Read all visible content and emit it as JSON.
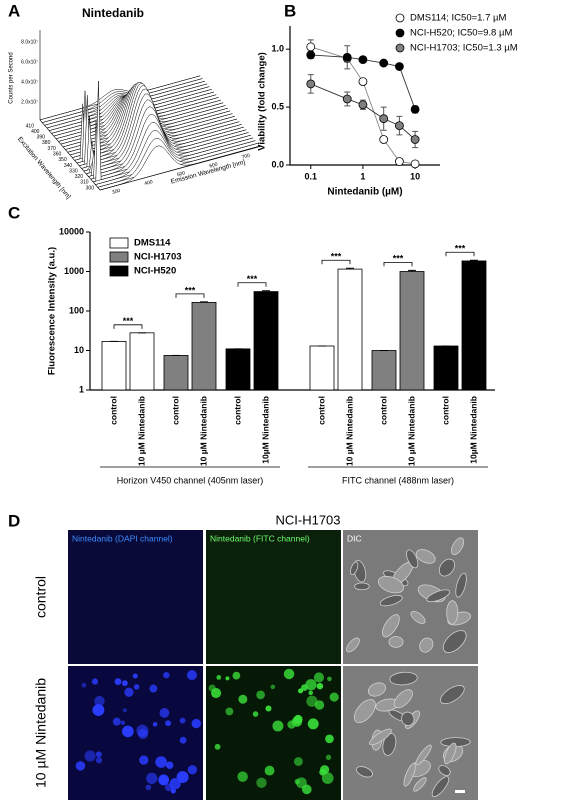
{
  "panel_labels": [
    "A",
    "B",
    "C",
    "D"
  ],
  "panel_a": {
    "title": "Nintedanib",
    "z_label": "Counts per Second",
    "z_ticks": [
      "8.0x10⁷",
      "6.0x10⁷",
      "4.0x10⁷",
      "2.0x10⁷"
    ],
    "y_label": "Excitation Wavelength [nm]",
    "y_ticks": [
      "410",
      "400",
      "390",
      "380",
      "370",
      "360",
      "350",
      "340",
      "330",
      "320",
      "310",
      "300"
    ],
    "x_label": "Emission Wavelength [nm]",
    "x_ticks": [
      "300",
      "400",
      "500",
      "600",
      "700"
    ]
  },
  "chart_data": [
    {
      "type": "line",
      "x_label": "Nintedanib (µM)",
      "y_label": "Viability (fold change)",
      "log_x": true,
      "x": [
        0.1,
        0.5,
        1,
        2.5,
        5,
        10
      ],
      "xlim": [
        0.04,
        30
      ],
      "xticks": [
        0.1,
        1,
        10
      ],
      "ylim": [
        0,
        1.2
      ],
      "yticks": [
        {
          "value": 0,
          "label": "0.0"
        },
        {
          "value": 0.5,
          "label": "0.5"
        },
        {
          "value": 1,
          "label": "1.0"
        }
      ],
      "series": [
        {
          "name": "DMS114; IC50=1.7 µM",
          "color": "#ffffff",
          "values": [
            1.02,
            0.92,
            0.72,
            0.22,
            0.03,
            0.01
          ],
          "errors": [
            0.06,
            0.03,
            0.02,
            0.02,
            0.01,
            0.01
          ]
        },
        {
          "name": "NCI-H520; IC50=9.8 µM",
          "color": "#000000",
          "values": [
            0.95,
            0.93,
            0.91,
            0.88,
            0.85,
            0.48
          ],
          "errors": [
            0.03,
            0.1,
            0.02,
            0.02,
            0.02,
            0.03
          ]
        },
        {
          "name": "NCI-H1703; IC50=1.3 µM",
          "color": "#808080",
          "values": [
            0.7,
            0.57,
            0.52,
            0.4,
            0.34,
            0.22
          ],
          "errors": [
            0.08,
            0.06,
            0.04,
            0.1,
            0.08,
            0.07
          ]
        }
      ]
    },
    {
      "type": "bar",
      "y_label": "Fluorescence Intensity (a.u.)",
      "log_y": true,
      "categories": [
        "control",
        "10 µM Nintedanib",
        "control",
        "10 µM Nintedanib",
        "control",
        "10µM Nintedanib",
        "control",
        "10 µM Nintedanib",
        "control",
        "10 µM Nintedanib",
        "control",
        "10µM Nintedanib"
      ],
      "values": [
        17,
        28,
        7.5,
        165,
        11,
        310,
        13,
        1150,
        10,
        1000,
        13,
        1850
      ],
      "errors": [
        0,
        0,
        0,
        5,
        0,
        15,
        0,
        60,
        0,
        70,
        0,
        80
      ],
      "colors": [
        "#ffffff",
        "#ffffff",
        "#808080",
        "#808080",
        "#000000",
        "#000000",
        "#ffffff",
        "#ffffff",
        "#808080",
        "#808080",
        "#000000",
        "#000000"
      ],
      "legend": [
        {
          "name": "DMS114",
          "color": "#ffffff"
        },
        {
          "name": "NCI-H1703",
          "color": "#808080"
        },
        {
          "name": "NCI-H520",
          "color": "#000000"
        }
      ],
      "significance": [
        "***",
        "***",
        "***",
        "***",
        "***",
        "***"
      ],
      "groups": [
        "Horizon V450 channel (405nm laser)",
        "FITC channel (488nm laser)"
      ],
      "ylim": [
        1,
        10000
      ],
      "yticks": [
        1,
        10,
        100,
        1000,
        10000
      ]
    }
  ],
  "panel_d": {
    "title": "NCI-H1703",
    "columns": [
      "Nintedanib (DAPI channel)",
      "Nintedanib (FITC channel)",
      "DIC"
    ],
    "rows": [
      "control",
      "10 µM Nintedanib"
    ]
  }
}
